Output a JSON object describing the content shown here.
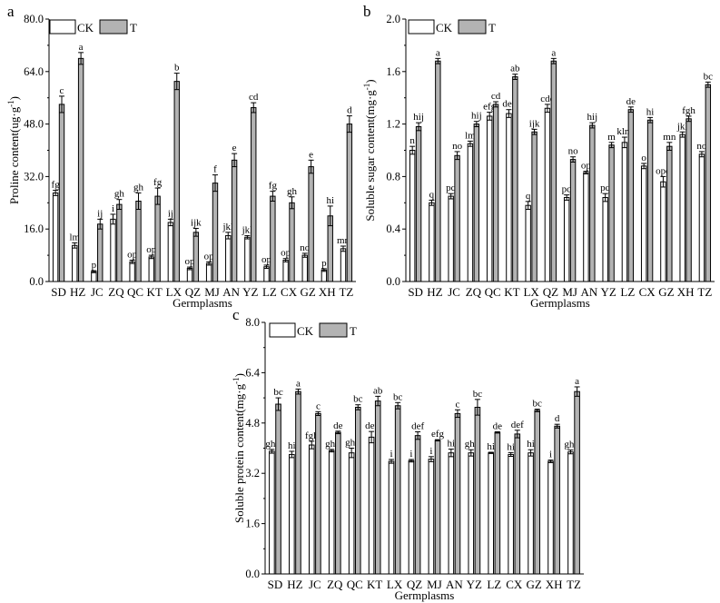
{
  "colors": {
    "ck": "#ffffff",
    "t": "#b3b3b3",
    "stroke": "#000000"
  },
  "chart_data": [
    {
      "type": "bar",
      "panel_label": "a",
      "title": "",
      "xlabel": "Germplasms",
      "ylabel": "Proline content(ug·g",
      "ylabel_sup": "-1",
      "ylabel_end": ")",
      "ylim": [
        0,
        80
      ],
      "yticks": [
        "0.0",
        "16.0",
        "32.0",
        "48.0",
        "64.0",
        "80.0"
      ],
      "categories": [
        "SD",
        "HZ",
        "JC",
        "ZQ",
        "QC",
        "KT",
        "LX",
        "QZ",
        "MJ",
        "AN",
        "YZ",
        "LZ",
        "CX",
        "GZ",
        "XH",
        "TZ"
      ],
      "legend": [
        "CK",
        "T"
      ],
      "series": [
        {
          "name": "CK",
          "values": [
            27,
            11,
            3,
            19,
            6,
            7.5,
            18,
            4,
            5.5,
            14,
            13.5,
            4.5,
            6.5,
            8,
            3.5,
            10
          ],
          "errors": [
            0.8,
            0.8,
            0.3,
            1.5,
            0.5,
            0.5,
            1,
            0.4,
            0.5,
            1,
            0.5,
            0.5,
            0.5,
            0.6,
            0.4,
            0.8
          ],
          "labels": [
            "fg",
            "lm",
            "p",
            "i",
            "op",
            "op",
            "ij",
            "op",
            "op",
            "jkl",
            "jkl",
            "op",
            "op",
            "no",
            "p",
            "mn"
          ]
        },
        {
          "name": "T",
          "values": [
            54,
            68,
            17.5,
            23.5,
            24.5,
            26,
            61,
            15,
            30,
            37,
            53,
            26,
            24,
            35,
            20,
            48
          ],
          "errors": [
            2.5,
            1.8,
            1.5,
            1.5,
            2.5,
            2.5,
            2.5,
            1.2,
            2.5,
            2,
            1.5,
            1.5,
            1.8,
            2,
            3,
            2.5
          ],
          "labels": [
            "c",
            "a",
            "ij",
            "gh",
            "gh",
            "fg",
            "b",
            "ijk",
            "f",
            "e",
            "cd",
            "fg",
            "gh",
            "e",
            "hi",
            "d"
          ]
        }
      ]
    },
    {
      "type": "bar",
      "panel_label": "b",
      "title": "",
      "xlabel": "Germplasms",
      "ylabel": "Soluble sugar content(mg·g",
      "ylabel_sup": "-1",
      "ylabel_end": ")",
      "ylim": [
        0,
        2.0
      ],
      "yticks": [
        "0.0",
        "0.4",
        "0.8",
        "1.2",
        "1.6",
        "2.0"
      ],
      "categories": [
        "SD",
        "HZ",
        "JC",
        "ZQ",
        "QC",
        "KT",
        "LX",
        "QZ",
        "MJ",
        "AN",
        "YZ",
        "LZ",
        "CX",
        "GZ",
        "XH",
        "TZ"
      ],
      "legend": [
        "CK",
        "T"
      ],
      "series": [
        {
          "name": "CK",
          "values": [
            1.0,
            0.6,
            0.65,
            1.05,
            1.26,
            1.28,
            0.58,
            1.32,
            0.64,
            0.83,
            0.64,
            1.06,
            0.88,
            0.76,
            1.12,
            0.97
          ],
          "errors": [
            0.03,
            0.02,
            0.02,
            0.02,
            0.03,
            0.03,
            0.03,
            0.03,
            0.02,
            0.01,
            0.03,
            0.04,
            0.02,
            0.04,
            0.02,
            0.02
          ],
          "labels": [
            "n",
            "q",
            "pq",
            "lm",
            "efg",
            "def",
            "q",
            "cde",
            "pq",
            "op",
            "pq",
            "klm",
            "o",
            "opq",
            "jkl",
            "no"
          ]
        },
        {
          "name": "T",
          "values": [
            1.18,
            1.68,
            0.96,
            1.2,
            1.35,
            1.56,
            1.14,
            1.68,
            0.93,
            1.19,
            1.04,
            1.31,
            1.23,
            1.03,
            1.24,
            1.5
          ],
          "errors": [
            0.03,
            0.02,
            0.03,
            0.02,
            0.02,
            0.02,
            0.02,
            0.02,
            0.02,
            0.02,
            0.02,
            0.02,
            0.02,
            0.03,
            0.02,
            0.02
          ],
          "labels": [
            "hij",
            "a",
            "no",
            "hij",
            "cd",
            "ab",
            "ijk",
            "a",
            "no",
            "hij",
            "m",
            "de",
            "hi",
            "mn",
            "fgh",
            "bc"
          ]
        }
      ]
    },
    {
      "type": "bar",
      "panel_label": "c",
      "title": "",
      "xlabel": "Germplasms",
      "ylabel": "Soluble protein content(mg·g",
      "ylabel_sup": "-1",
      "ylabel_end": ")",
      "ylim": [
        0,
        8.0
      ],
      "yticks": [
        "0.0",
        "1.6",
        "3.2",
        "4.8",
        "6.4",
        "8.0"
      ],
      "categories": [
        "SD",
        "HZ",
        "JC",
        "ZQ",
        "QC",
        "KT",
        "LX",
        "QZ",
        "MJ",
        "AN",
        "YZ",
        "LZ",
        "CX",
        "GZ",
        "XH",
        "TZ"
      ],
      "legend": [
        "CK",
        "T"
      ],
      "series": [
        {
          "name": "CK",
          "values": [
            3.9,
            3.8,
            4.1,
            3.92,
            3.85,
            4.35,
            3.58,
            3.6,
            3.65,
            3.85,
            3.85,
            3.85,
            3.8,
            3.85,
            3.58,
            3.88
          ],
          "errors": [
            0.06,
            0.1,
            0.12,
            0.04,
            0.15,
            0.18,
            0.06,
            0.04,
            0.08,
            0.12,
            0.1,
            0.02,
            0.06,
            0.1,
            0.04,
            0.06
          ],
          "labels": [
            "ghi",
            "hi",
            "fgh",
            "ghi",
            "ghi",
            "def",
            "i",
            "i",
            "i",
            "hi",
            "ghi",
            "hi",
            "hi",
            "hi",
            "i",
            "ghi"
          ]
        },
        {
          "name": "T",
          "values": [
            5.4,
            5.8,
            5.1,
            4.5,
            5.3,
            5.5,
            5.35,
            4.4,
            4.25,
            5.1,
            5.3,
            4.5,
            4.45,
            5.2,
            4.7,
            5.8
          ],
          "errors": [
            0.2,
            0.08,
            0.06,
            0.04,
            0.08,
            0.15,
            0.1,
            0.12,
            0.02,
            0.12,
            0.25,
            0.02,
            0.12,
            0.04,
            0.06,
            0.15
          ],
          "labels": [
            "bc",
            "a",
            "c",
            "de",
            "bc",
            "ab",
            "bc",
            "def",
            "efg",
            "c",
            "bc",
            "de",
            "def",
            "bc",
            "d",
            "a"
          ]
        }
      ]
    }
  ]
}
